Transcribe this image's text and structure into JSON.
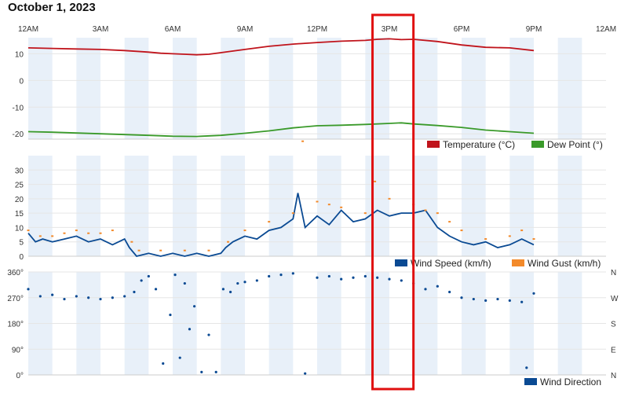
{
  "page_title": "October 1, 2023",
  "colors": {
    "temperature": "#c0141c",
    "dew_point": "#3a9a2a",
    "wind_speed": "#0a4a93",
    "wind_gust": "#f38a2a",
    "wind_direction": "#0a4a93",
    "band": "#e8f0f9",
    "grid": "#e6e6e6",
    "highlight_box": "#e01010"
  },
  "time_axis": {
    "labels": [
      "12AM",
      "3AM",
      "6AM",
      "9AM",
      "12PM",
      "3PM",
      "6PM",
      "9PM",
      "12AM"
    ],
    "label_hours": [
      0,
      3,
      6,
      9,
      12,
      15,
      18,
      21,
      24
    ],
    "range_hours": [
      0,
      24
    ]
  },
  "highlight": {
    "start_hour": 14.3,
    "end_hour": 16.0
  },
  "chart_data": [
    {
      "type": "line",
      "title": "",
      "ylim": [
        -22,
        16
      ],
      "yticks": [
        10,
        0,
        -10,
        -20
      ],
      "ytick_labels": [
        "10",
        "0",
        "-10",
        "-20"
      ],
      "grid": true,
      "legend_placement": "bottom-right",
      "series": [
        {
          "name": "Temperature (°C)",
          "color": "#c0141c",
          "x": [
            0,
            1,
            2,
            3,
            4,
            5,
            5.5,
            6,
            6.5,
            7,
            7.5,
            8,
            9,
            10,
            11,
            12,
            13,
            14,
            14.5,
            15,
            15.5,
            16,
            17,
            18,
            19,
            20,
            21
          ],
          "values": [
            12.2,
            12,
            11.8,
            11.6,
            11.2,
            10.6,
            10.2,
            10,
            9.8,
            9.6,
            9.8,
            10.4,
            11.6,
            12.8,
            13.6,
            14.2,
            14.7,
            15,
            15.4,
            15.6,
            15.3,
            15.4,
            14.6,
            13.3,
            12.4,
            12.2,
            11.2
          ]
        },
        {
          "name": "Dew Point (°)",
          "color": "#3a9a2a",
          "x": [
            0,
            1,
            2,
            3,
            4,
            5,
            6,
            7,
            8,
            9,
            10,
            11,
            12,
            13,
            14,
            15,
            15.5,
            16,
            17,
            18,
            19,
            20,
            21
          ],
          "values": [
            -19.2,
            -19.4,
            -19.7,
            -20,
            -20.3,
            -20.6,
            -20.9,
            -21,
            -20.6,
            -19.8,
            -18.9,
            -17.8,
            -17,
            -16.8,
            -16.5,
            -16.1,
            -15.9,
            -16.3,
            -16.9,
            -17.6,
            -18.6,
            -19.2,
            -19.8
          ]
        }
      ]
    },
    {
      "type": "line",
      "title": "",
      "ylim": [
        0,
        35
      ],
      "yticks": [
        30,
        25,
        20,
        15,
        10,
        5,
        0
      ],
      "ytick_labels": [
        "30",
        "25",
        "20",
        "15",
        "10",
        "5",
        "0"
      ],
      "grid": true,
      "legend_placement": "bottom-right",
      "series": [
        {
          "name": "Wind Speed (km/h)",
          "color": "#0a4a93",
          "x": [
            0,
            0.3,
            0.6,
            1,
            1.5,
            2,
            2.5,
            3,
            3.5,
            4,
            4.2,
            4.5,
            5,
            5.5,
            6,
            6.5,
            7,
            7.5,
            8,
            8.2,
            8.5,
            9,
            9.5,
            10,
            10.5,
            11,
            11.2,
            11.5,
            12,
            12.5,
            13,
            13.5,
            14,
            14.5,
            15,
            15.5,
            16,
            16.5,
            17,
            17.5,
            18,
            18.5,
            19,
            19.5,
            20,
            20.5,
            21
          ],
          "values": [
            8,
            5,
            6,
            5,
            6,
            7,
            5,
            6,
            4,
            6,
            3,
            0,
            1,
            0,
            1,
            0,
            1,
            0,
            1,
            3,
            5,
            7,
            6,
            9,
            10,
            13,
            22,
            10,
            14,
            11,
            16,
            12,
            13,
            16,
            14,
            15,
            15,
            16,
            10,
            7,
            5,
            4,
            5,
            3,
            4,
            6,
            4
          ]
        },
        {
          "name": "Wind Gust (km/h)",
          "color": "#f38a2a",
          "x": [
            0,
            0.5,
            1,
            1.5,
            2,
            2.5,
            3,
            3.5,
            4.3,
            4.6,
            5.5,
            6.5,
            7.5,
            8.3,
            9,
            10,
            11,
            11.4,
            12,
            12.5,
            13,
            14,
            14.4,
            15,
            16,
            16.5,
            17,
            17.5,
            18,
            19,
            20,
            20.5,
            21
          ],
          "values": [
            9,
            7,
            7,
            8,
            9,
            8,
            8,
            9,
            5,
            2,
            2,
            2,
            2,
            5,
            9,
            12,
            15,
            40,
            19,
            18,
            17,
            15,
            26,
            20,
            18,
            16,
            15,
            12,
            9,
            6,
            7,
            9,
            6
          ]
        }
      ]
    },
    {
      "type": "scatter",
      "title": "",
      "ylim": [
        0,
        360
      ],
      "yticks": [
        360,
        270,
        180,
        90,
        0
      ],
      "ytick_labels": [
        "360°",
        "270°",
        "180°",
        "90°",
        "0°"
      ],
      "right_tick_labels": [
        "N",
        "W",
        "S",
        "E",
        "N"
      ],
      "grid": true,
      "legend_placement": "bottom-right",
      "series": [
        {
          "name": "Wind Direction",
          "color": "#0a4a93",
          "x": [
            0,
            0.5,
            1,
            1.5,
            2,
            2.5,
            3,
            3.5,
            4,
            4.4,
            4.7,
            5,
            5.3,
            5.6,
            5.9,
            6.1,
            6.3,
            6.5,
            6.7,
            6.9,
            7.2,
            7.5,
            7.8,
            8.1,
            8.4,
            8.7,
            9,
            9.5,
            10,
            10.5,
            11,
            11.5,
            12,
            12.5,
            13,
            13.5,
            14,
            14.5,
            15,
            15.5,
            16,
            16.5,
            17,
            17.5,
            18,
            18.5,
            19,
            19.5,
            20,
            20.5,
            20.7,
            21
          ],
          "values": [
            300,
            275,
            280,
            265,
            275,
            270,
            265,
            270,
            275,
            290,
            330,
            345,
            300,
            40,
            210,
            350,
            60,
            320,
            160,
            240,
            10,
            140,
            10,
            300,
            290,
            320,
            325,
            330,
            345,
            350,
            355,
            5,
            340,
            345,
            335,
            340,
            345,
            340,
            335,
            330,
            320,
            300,
            310,
            290,
            270,
            265,
            260,
            265,
            260,
            255,
            25,
            285
          ]
        }
      ]
    }
  ]
}
